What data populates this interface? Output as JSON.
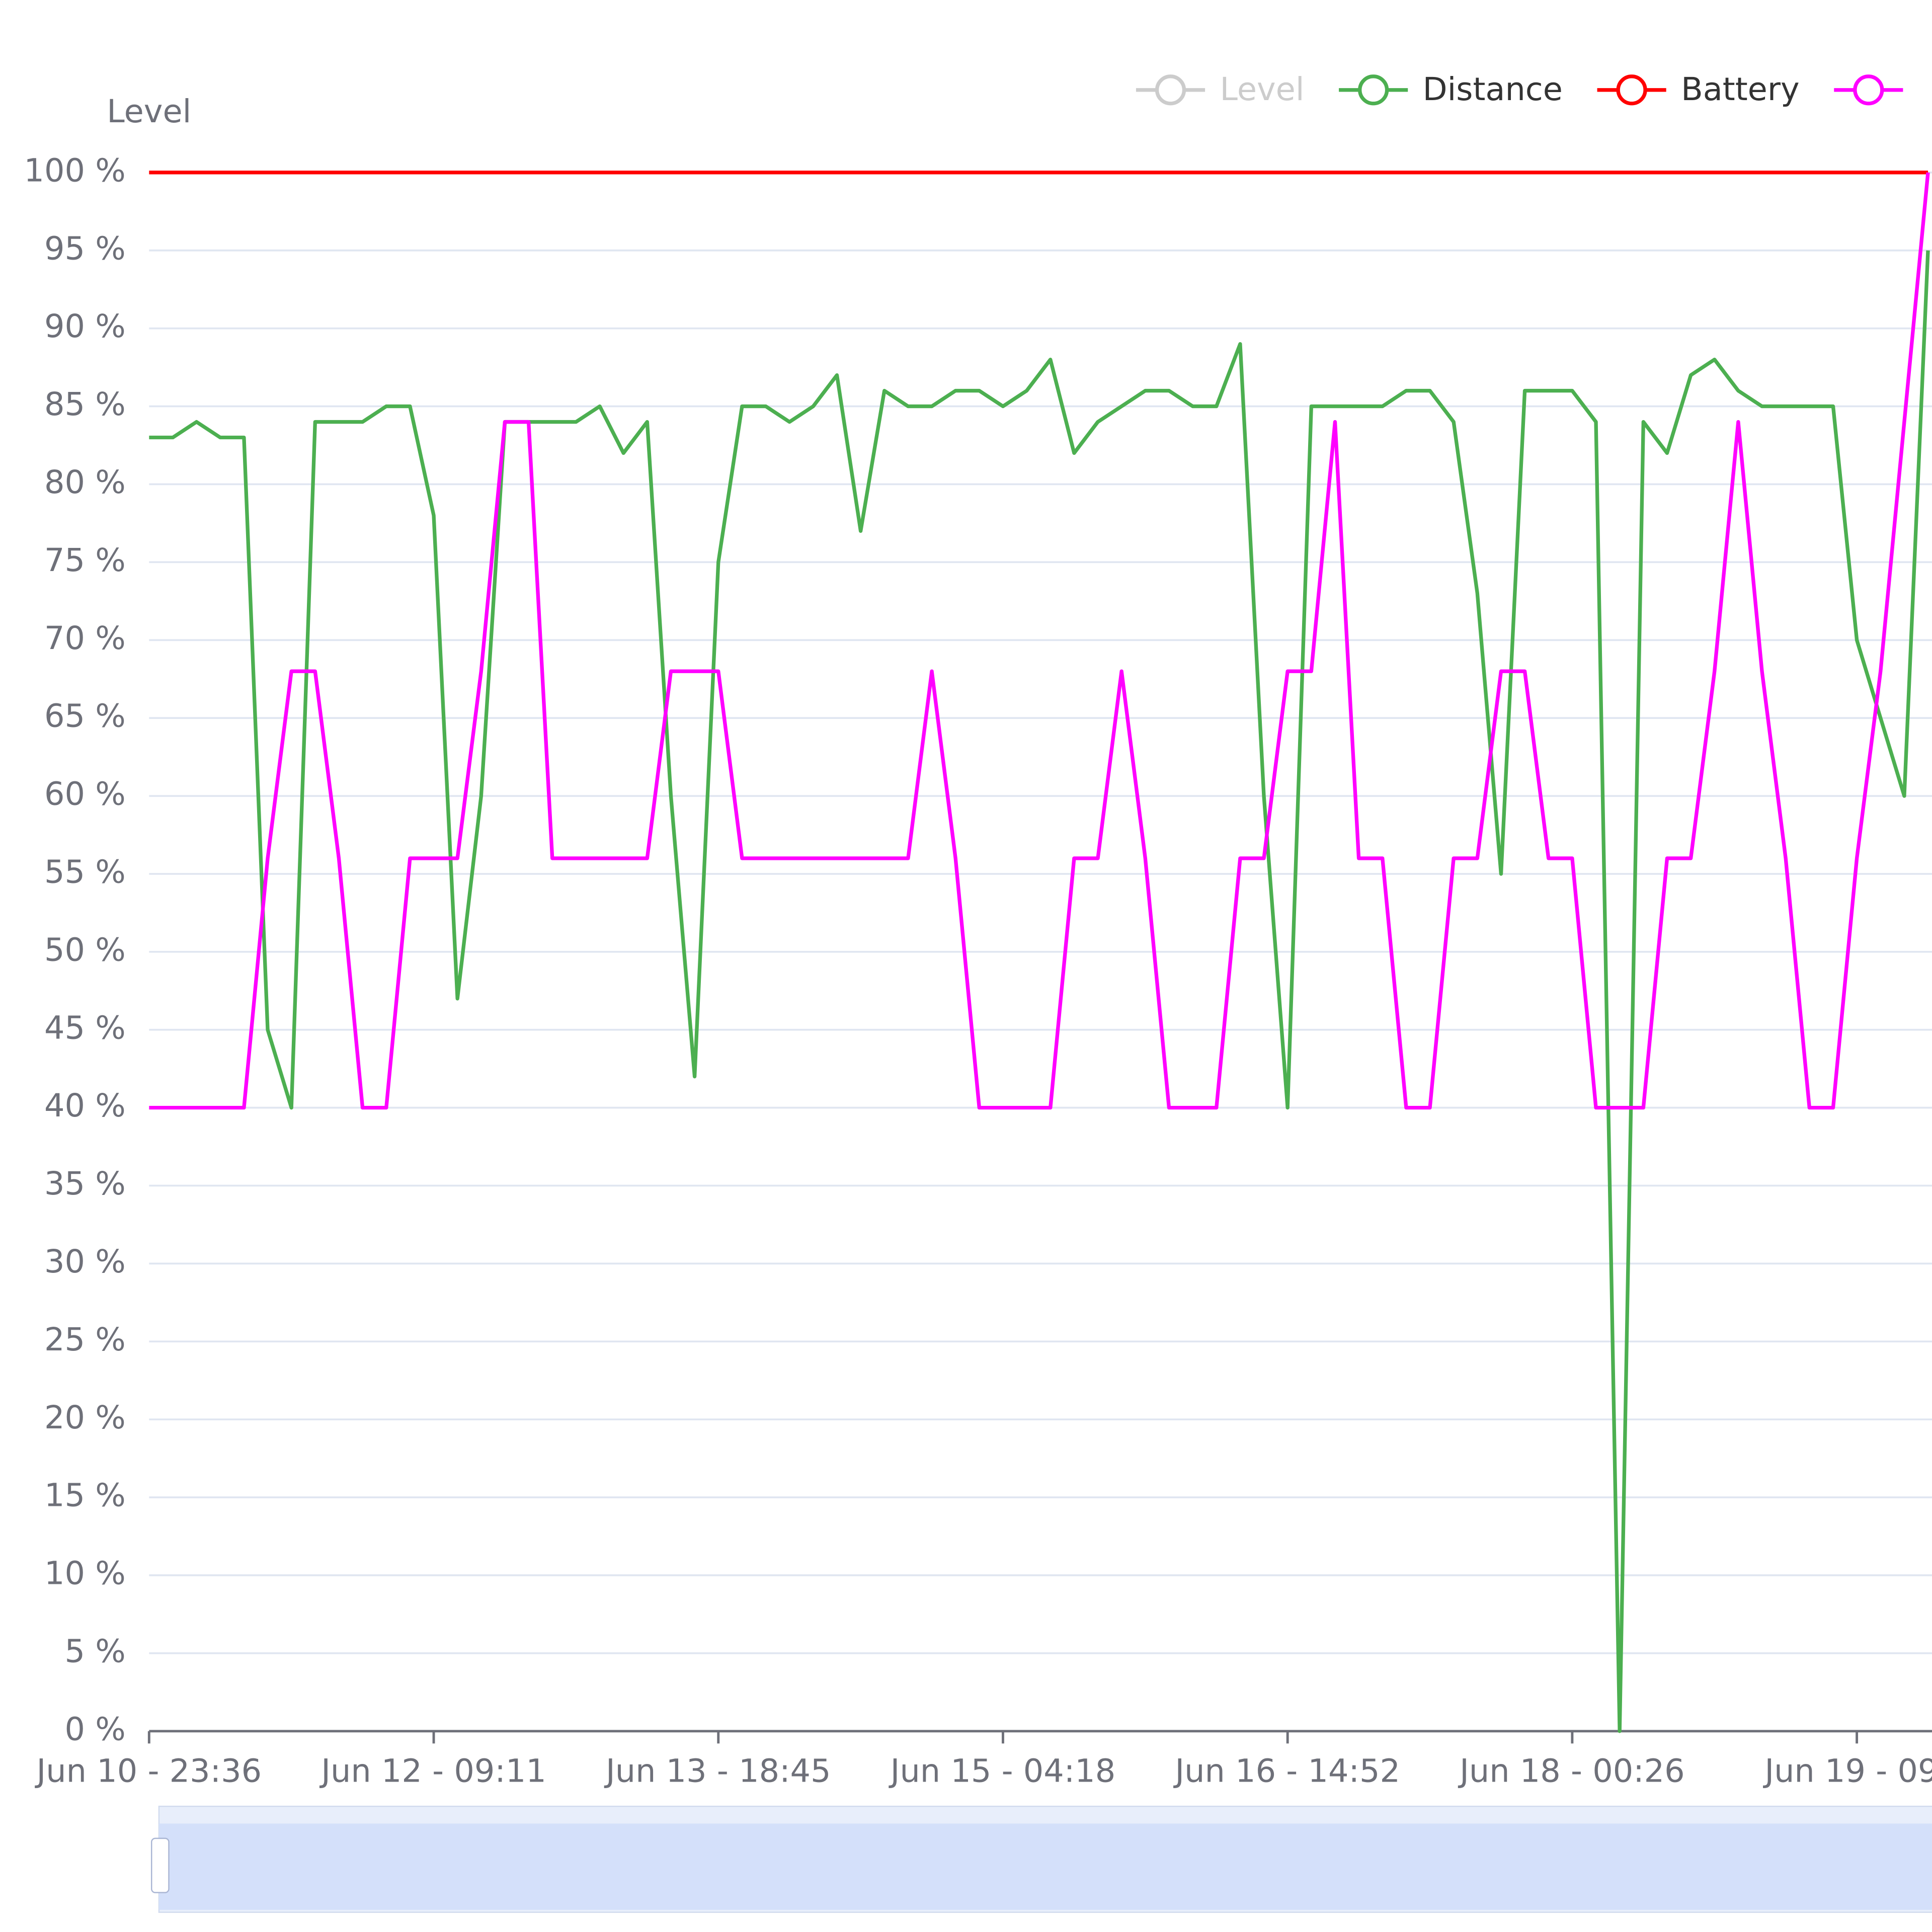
{
  "chart_data": {
    "type": "line",
    "y_axis_label": "Level",
    "ylim": [
      0,
      100
    ],
    "yticks": [
      {
        "value": 0,
        "label": "0 %"
      },
      {
        "value": 5,
        "label": "5 %"
      },
      {
        "value": 10,
        "label": "10 %"
      },
      {
        "value": 15,
        "label": "15 %"
      },
      {
        "value": 20,
        "label": "20 %"
      },
      {
        "value": 25,
        "label": "25 %"
      },
      {
        "value": 30,
        "label": "30 %"
      },
      {
        "value": 35,
        "label": "35 %"
      },
      {
        "value": 40,
        "label": "40 %"
      },
      {
        "value": 45,
        "label": "45 %"
      },
      {
        "value": 50,
        "label": "50 %"
      },
      {
        "value": 55,
        "label": "55 %"
      },
      {
        "value": 60,
        "label": "60 %"
      },
      {
        "value": 65,
        "label": "65 %"
      },
      {
        "value": 70,
        "label": "70 %"
      },
      {
        "value": 75,
        "label": "75 %"
      },
      {
        "value": 80,
        "label": "80 %"
      },
      {
        "value": 85,
        "label": "85 %"
      },
      {
        "value": 90,
        "label": "90 %"
      },
      {
        "value": 95,
        "label": "95 %"
      },
      {
        "value": 100,
        "label": "100 %"
      }
    ],
    "grid": true,
    "legend": "top-right",
    "categories": [
      "Jun 10 - 23:36",
      null,
      null,
      null,
      null,
      null,
      null,
      null,
      null,
      null,
      null,
      null,
      "Jun 12 - 09:11",
      null,
      null,
      null,
      null,
      null,
      null,
      null,
      null,
      null,
      null,
      null,
      "Jun 13 - 18:45",
      null,
      null,
      null,
      null,
      null,
      null,
      null,
      null,
      null,
      null,
      null,
      "Jun 15 - 04:18",
      null,
      null,
      null,
      null,
      null,
      null,
      null,
      null,
      null,
      null,
      null,
      "Jun 16 - 14:52",
      null,
      null,
      null,
      null,
      null,
      null,
      null,
      null,
      null,
      null,
      null,
      "Jun 18 - 00:26",
      null,
      null,
      null,
      null,
      null,
      null,
      null,
      null,
      null,
      null,
      null,
      "Jun 19 - 09:",
      null,
      null,
      null
    ],
    "series": [
      {
        "name": "Level",
        "color": "#cccccc",
        "hidden": true,
        "values": [
          null,
          null,
          null,
          null,
          null,
          null,
          null,
          null,
          null,
          null,
          null,
          null,
          null,
          null,
          null,
          null,
          null,
          null,
          null,
          null,
          null,
          null,
          null,
          null,
          null,
          null,
          null,
          null,
          null,
          null,
          null,
          null,
          null,
          null,
          null,
          null,
          null,
          null,
          null,
          null,
          null,
          null,
          null,
          null,
          null,
          null,
          null,
          null,
          null,
          null,
          null,
          null,
          null,
          null,
          null,
          null,
          null,
          null,
          null,
          null,
          null,
          null,
          null,
          null,
          null,
          null,
          null,
          null,
          null,
          null,
          null,
          null,
          null,
          null,
          null,
          null
        ]
      },
      {
        "name": "Distance",
        "color": "#4caf50",
        "values": [
          83,
          83,
          84,
          83,
          83,
          45,
          40,
          84,
          84,
          84,
          85,
          85,
          78,
          47,
          60,
          84,
          84,
          84,
          84,
          85,
          82,
          84,
          60,
          42,
          75,
          85,
          85,
          84,
          85,
          87,
          77,
          86,
          85,
          85,
          86,
          86,
          85,
          86,
          88,
          82,
          84,
          85,
          86,
          86,
          85,
          85,
          89,
          60,
          40,
          85,
          85,
          85,
          85,
          86,
          86,
          84,
          73,
          55,
          86,
          86,
          86,
          84,
          0,
          84,
          82,
          87,
          88,
          86,
          85,
          85,
          85,
          85,
          70,
          65,
          60,
          95
        ]
      },
      {
        "name": "Battery",
        "color": "#ff0000",
        "values": [
          100,
          100,
          100,
          100,
          100,
          100,
          100,
          100,
          100,
          100,
          100,
          100,
          100,
          100,
          100,
          100,
          100,
          100,
          100,
          100,
          100,
          100,
          100,
          100,
          100,
          100,
          100,
          100,
          100,
          100,
          100,
          100,
          100,
          100,
          100,
          100,
          100,
          100,
          100,
          100,
          100,
          100,
          100,
          100,
          100,
          100,
          100,
          100,
          100,
          100,
          100,
          100,
          100,
          100,
          100,
          100,
          100,
          100,
          100,
          100,
          100,
          100,
          100,
          100,
          100,
          100,
          100,
          100,
          100,
          100,
          100,
          100,
          100,
          100,
          100,
          100
        ]
      },
      {
        "color": "#ff00ff",
        "values": [
          40,
          40,
          40,
          40,
          40,
          56,
          68,
          68,
          56,
          40,
          40,
          56,
          56,
          56,
          68,
          84,
          84,
          56,
          56,
          56,
          56,
          56,
          68,
          68,
          68,
          56,
          56,
          56,
          56,
          56,
          56,
          56,
          56,
          68,
          56,
          40,
          40,
          40,
          40,
          56,
          56,
          68,
          56,
          40,
          40,
          40,
          56,
          56,
          68,
          68,
          84,
          56,
          56,
          40,
          40,
          56,
          56,
          68,
          68,
          56,
          56,
          40,
          40,
          40,
          56,
          56,
          68,
          84,
          68,
          56,
          40,
          40,
          56,
          68,
          84,
          100
        ]
      }
    ]
  }
}
